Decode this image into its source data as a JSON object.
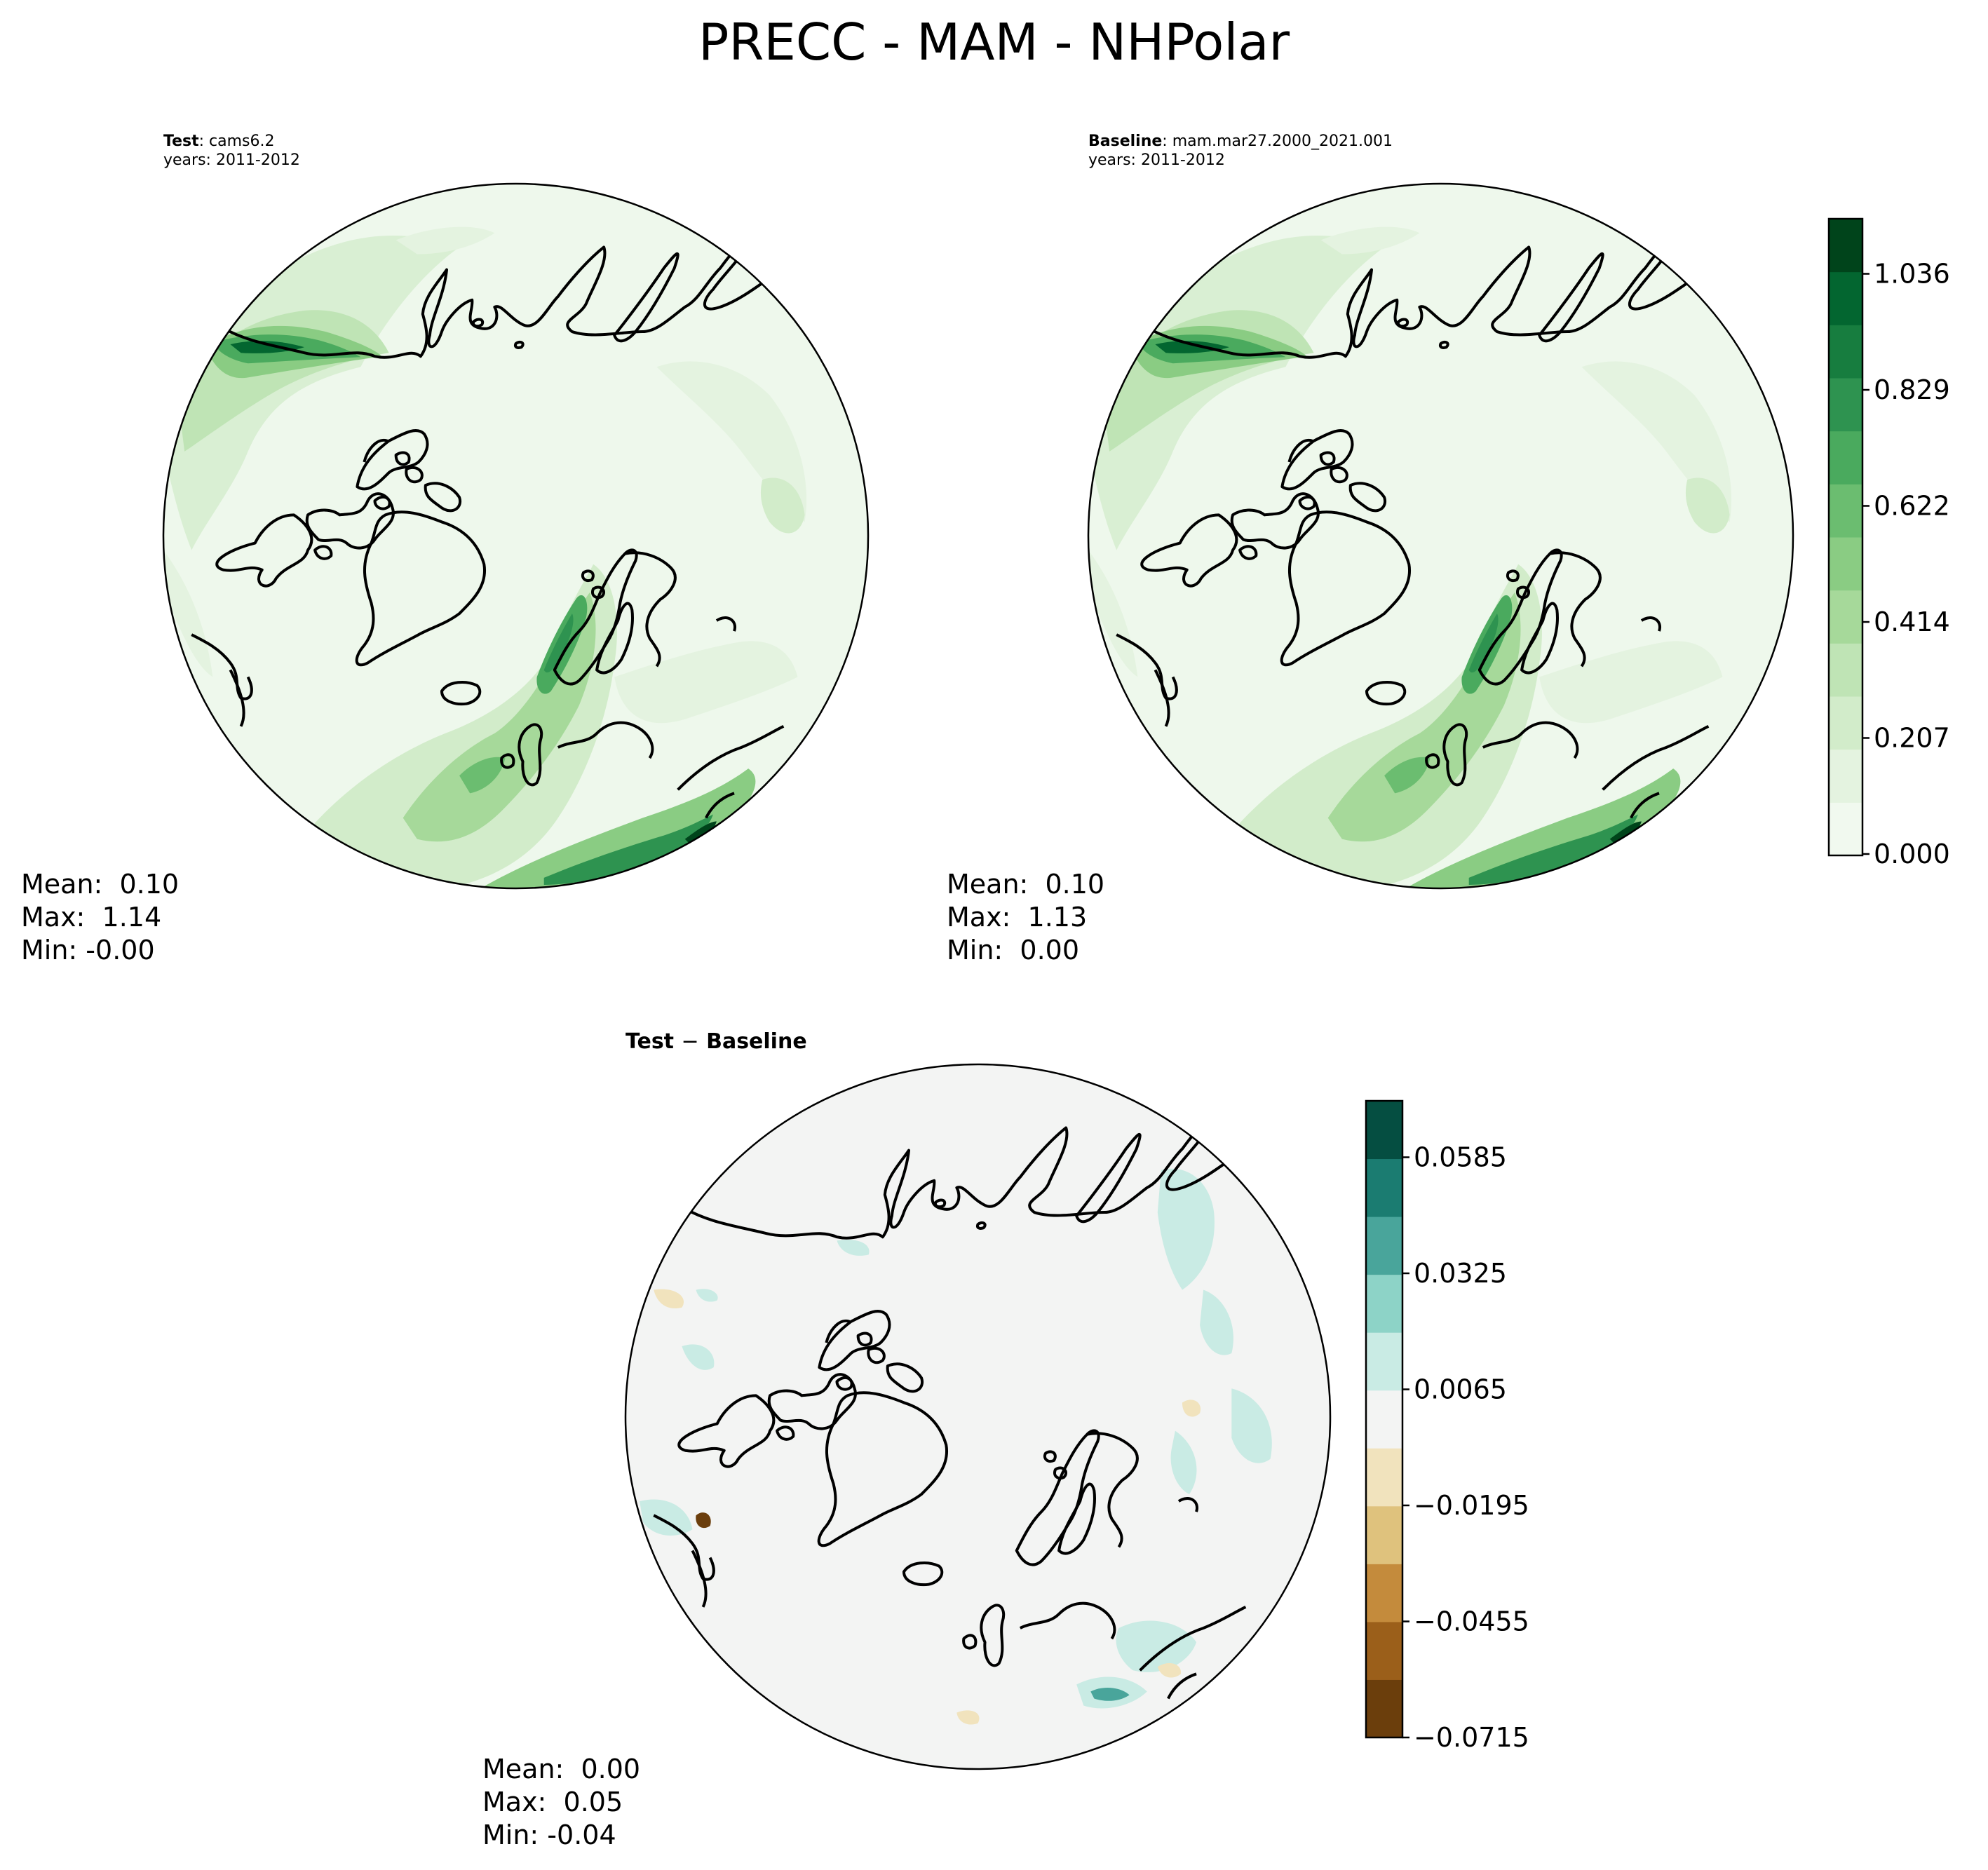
{
  "title": "PRECC - MAM - NHPolar",
  "test_panel": {
    "label_key": "Test",
    "label_value": "cams6.2",
    "years": "years: 2011-2012",
    "stats": {
      "mean": "Mean:  0.10",
      "max": "Max:  1.14",
      "min": "Min: -0.00"
    }
  },
  "baseline_panel": {
    "label_key": "Baseline",
    "label_value": "mam.mar27.2000_2021.001",
    "years": "years: 2011-2012",
    "stats": {
      "mean": "Mean:  0.10",
      "max": "Max:  1.13",
      "min": "Min:  0.00"
    }
  },
  "diff_panel": {
    "title_left": "Test",
    "title_minus": "−",
    "title_right": "Baseline",
    "stats": {
      "mean": "Mean:  0.00",
      "max": "Max:  0.05",
      "min": "Min: -0.04"
    }
  },
  "colorbar_main": {
    "ticks": [
      "0.000",
      "0.207",
      "0.414",
      "0.622",
      "0.829",
      "1.036"
    ],
    "colors": [
      "#f1f9ef",
      "#e4f3e0",
      "#d2ecca",
      "#bfe4b5",
      "#a6d99a",
      "#8acc83",
      "#6bbd70",
      "#4aaa5e",
      "#2e9350",
      "#177d3f",
      "#036630",
      "#00441b"
    ]
  },
  "colorbar_diff": {
    "ticks": [
      "−0.0715",
      "−0.0455",
      "−0.0195",
      "0.0065",
      "0.0325",
      "0.0585"
    ],
    "colors": [
      "#6b3e0c",
      "#9b5f1a",
      "#c48b3c",
      "#dfc27d",
      "#f1e3bd",
      "#f3f4f3",
      "#c9ebe4",
      "#8dd3c7",
      "#49a59b",
      "#1b7c71",
      "#054e41"
    ]
  },
  "map_colors": {
    "land_outline": "#000000",
    "test_background": "#eef8ec",
    "diff_background": "#f3f4f3"
  }
}
